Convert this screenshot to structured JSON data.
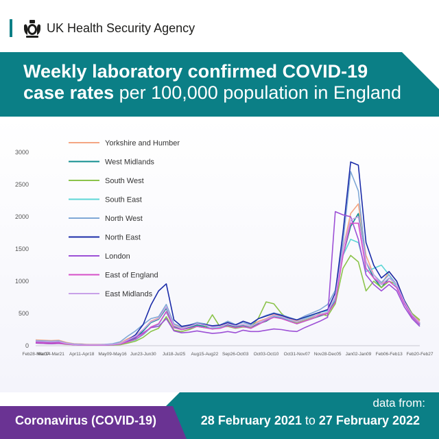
{
  "header": {
    "agency_name": "UK Health Security Agency"
  },
  "title": {
    "line1": "Weekly laboratory confirmed COVID-19",
    "line2_bold": "case rates",
    "line2_rest": "per 100,000 population in England"
  },
  "footer": {
    "label": "Coronavirus (COVID-19)",
    "data_from": "data from:",
    "start_date": "28 February 2021",
    "to": "to",
    "end_date": "27 February 2022"
  },
  "colors": {
    "brand_teal": "#0b7f86",
    "brand_purple": "#6a3393"
  },
  "chart_data": {
    "type": "line",
    "title": "Weekly laboratory confirmed COVID-19 case rates per 100,000 population in England",
    "xlabel": "",
    "ylabel": "",
    "ylim": [
      0,
      3000
    ],
    "yticks": [
      0,
      500,
      1000,
      1500,
      2000,
      2500,
      3000
    ],
    "grid": false,
    "legend_position": "top-left",
    "x_tick_labels": [
      "Feb28-Mar07",
      "Mar14-Mar21",
      "Apr11-Apr18",
      "May09-May16",
      "Jun23-Jun30",
      "Jul18-Jul25",
      "Aug15-Aug22",
      "Sep26-Oct03",
      "Oct03-Oct10",
      "Oct31-Nov07",
      "Nov28-Dec05",
      "Jan02-Jan09",
      "Feb06-Feb13",
      "Feb20-Feb27"
    ],
    "x_tick_positions": [
      0,
      2,
      6,
      10,
      14,
      18,
      22,
      26,
      30,
      34,
      38,
      42,
      46,
      50
    ],
    "series": [
      {
        "name": "Yorkshire and Humber",
        "color": "#f4a582",
        "values": [
          90,
          85,
          80,
          85,
          50,
          30,
          25,
          20,
          20,
          20,
          25,
          40,
          110,
          160,
          250,
          380,
          430,
          600,
          330,
          280,
          310,
          360,
          330,
          290,
          310,
          350,
          310,
          330,
          300,
          380,
          420,
          480,
          460,
          420,
          380,
          420,
          460,
          480,
          520,
          760,
          1500,
          2050,
          2200,
          1400,
          1100,
          950,
          1150,
          1000,
          700,
          500,
          380
        ]
      },
      {
        "name": "West Midlands",
        "color": "#0f8d8d",
        "values": [
          60,
          55,
          50,
          55,
          30,
          20,
          15,
          10,
          10,
          10,
          15,
          25,
          70,
          120,
          230,
          360,
          410,
          580,
          300,
          250,
          280,
          320,
          300,
          260,
          280,
          320,
          290,
          310,
          280,
          340,
          380,
          450,
          430,
          380,
          340,
          380,
          420,
          460,
          500,
          700,
          1400,
          1850,
          2050,
          1300,
          1050,
          900,
          1050,
          950,
          650,
          450,
          330
        ]
      },
      {
        "name": "South West",
        "color": "#8bc34a",
        "values": [
          40,
          35,
          30,
          35,
          20,
          15,
          10,
          10,
          10,
          10,
          10,
          15,
          40,
          70,
          130,
          220,
          270,
          450,
          240,
          220,
          250,
          300,
          280,
          480,
          290,
          300,
          270,
          290,
          280,
          430,
          680,
          650,
          500,
          400,
          360,
          400,
          440,
          500,
          460,
          650,
          1200,
          1400,
          1300,
          850,
          1000,
          900,
          1000,
          950,
          700,
          500,
          400
        ]
      },
      {
        "name": "South East",
        "color": "#5cd6d6",
        "values": [
          50,
          45,
          40,
          45,
          25,
          15,
          10,
          10,
          10,
          10,
          15,
          25,
          60,
          90,
          170,
          280,
          330,
          520,
          280,
          250,
          270,
          300,
          280,
          270,
          280,
          310,
          280,
          300,
          270,
          330,
          400,
          460,
          440,
          400,
          370,
          420,
          470,
          520,
          540,
          720,
          1400,
          1650,
          1600,
          1150,
          1200,
          1250,
          1100,
          900,
          650,
          450,
          320
        ]
      },
      {
        "name": "North West",
        "color": "#7fa8d6",
        "values": [
          80,
          75,
          70,
          75,
          40,
          25,
          20,
          15,
          15,
          20,
          30,
          60,
          150,
          230,
          330,
          420,
          450,
          640,
          340,
          290,
          320,
          360,
          340,
          300,
          320,
          380,
          330,
          360,
          320,
          420,
          470,
          510,
          480,
          440,
          400,
          460,
          510,
          560,
          640,
          860,
          1600,
          2700,
          2400,
          1300,
          1100,
          980,
          1100,
          950,
          680,
          460,
          340
        ]
      },
      {
        "name": "North East",
        "color": "#1a2ba8",
        "values": [
          60,
          55,
          50,
          55,
          30,
          20,
          15,
          10,
          10,
          10,
          15,
          30,
          90,
          170,
          330,
          630,
          850,
          960,
          400,
          300,
          320,
          340,
          330,
          310,
          320,
          360,
          320,
          380,
          340,
          420,
          460,
          500,
          470,
          430,
          400,
          440,
          480,
          520,
          560,
          820,
          1750,
          2850,
          2800,
          1600,
          1250,
          1050,
          1150,
          1000,
          700,
          480,
          350
        ]
      },
      {
        "name": "London",
        "color": "#9c4fd6",
        "values": [
          40,
          35,
          30,
          35,
          25,
          15,
          10,
          10,
          10,
          10,
          15,
          30,
          80,
          130,
          200,
          280,
          300,
          420,
          230,
          200,
          210,
          230,
          210,
          190,
          200,
          220,
          200,
          240,
          220,
          220,
          240,
          260,
          250,
          230,
          220,
          280,
          330,
          380,
          440,
          2080,
          2030,
          2000,
          1650,
          1100,
          950,
          850,
          950,
          850,
          600,
          420,
          300
        ]
      },
      {
        "name": "East of England",
        "color": "#d64fc8",
        "values": [
          50,
          45,
          40,
          45,
          25,
          15,
          10,
          10,
          10,
          10,
          15,
          25,
          60,
          100,
          180,
          290,
          340,
          530,
          280,
          250,
          270,
          300,
          280,
          260,
          270,
          310,
          280,
          300,
          270,
          330,
          390,
          440,
          420,
          380,
          340,
          380,
          420,
          470,
          500,
          680,
          1400,
          1900,
          1900,
          1200,
          1050,
          950,
          1000,
          900,
          650,
          450,
          330
        ]
      },
      {
        "name": "East Midlands",
        "color": "#c8a0e8",
        "values": [
          70,
          65,
          60,
          65,
          35,
          20,
          15,
          15,
          15,
          15,
          20,
          35,
          90,
          150,
          250,
          370,
          420,
          600,
          310,
          270,
          300,
          340,
          320,
          290,
          300,
          340,
          310,
          330,
          300,
          360,
          410,
          470,
          450,
          410,
          370,
          410,
          450,
          490,
          520,
          760,
          1500,
          1950,
          2000,
          1300,
          1100,
          950,
          1050,
          950,
          680,
          480,
          350
        ]
      }
    ]
  }
}
